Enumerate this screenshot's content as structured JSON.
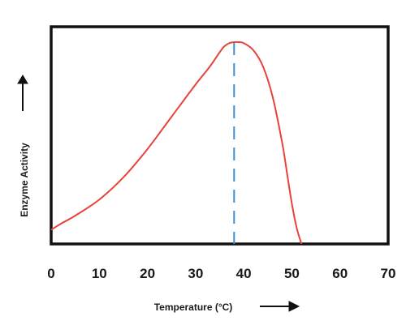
{
  "chart_data": {
    "type": "line",
    "title": "",
    "xlabel": "Temperature (°C)",
    "ylabel": "Enzyme Activity",
    "xlim": [
      0,
      70
    ],
    "ylim": [
      0,
      1
    ],
    "x_ticks": [
      "0",
      "10",
      "20",
      "30",
      "40",
      "50",
      "60",
      "70"
    ],
    "grid": false,
    "y_tick_labels_shown": false,
    "series": [
      {
        "color": "#e8423a",
        "x": [
          0,
          2,
          5,
          10,
          15,
          20,
          25,
          30,
          33,
          35,
          36,
          37,
          38,
          39,
          40,
          42,
          44,
          46,
          48,
          49,
          50,
          51,
          52
        ],
        "y": [
          0.07,
          0.1,
          0.14,
          0.22,
          0.33,
          0.47,
          0.63,
          0.79,
          0.88,
          0.95,
          0.98,
          0.995,
          1.0,
          1.0,
          0.995,
          0.96,
          0.88,
          0.73,
          0.5,
          0.35,
          0.2,
          0.08,
          0.0
        ]
      }
    ],
    "optimum_marker": {
      "x": 38,
      "color": "#3b8fd6",
      "style": "dashed"
    },
    "axis_arrows": {
      "x_arrow": "right",
      "y_arrow": "up"
    }
  }
}
